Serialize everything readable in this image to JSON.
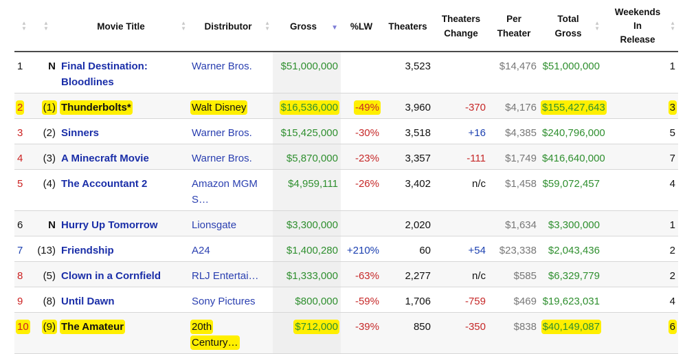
{
  "headers": {
    "title": "Movie Title",
    "distributor": "Distributor",
    "gross": "Gross",
    "lw": "%LW",
    "theaters": "Theaters",
    "theaters_change_1": "Theaters",
    "theaters_change_2": "Change",
    "per_theater_1": "Per",
    "per_theater_2": "Theater",
    "total_gross_1": "Total",
    "total_gross_2": "Gross",
    "weekends_1": "Weekends",
    "weekends_2": "In",
    "weekends_3": "Release"
  },
  "colors": {
    "highlight": "#ffef00",
    "link": "#1a2ea8",
    "gross_green": "#2f8f2f",
    "negative_red": "#c62828",
    "positive_blue": "#1a3fb0"
  },
  "rows": [
    {
      "rank": "1",
      "last": "N",
      "title": "Final Destination: Bloodlines",
      "distributor": "Warner Bros.",
      "gross": "$51,000,000",
      "lw": "",
      "theaters": "3,523",
      "change": "",
      "per_theater": "$14,476",
      "total_gross": "$51,000,000",
      "weekends": "1"
    },
    {
      "rank": "2",
      "last": "(1)",
      "title": "Thunderbolts*",
      "distributor": "Walt Disney",
      "gross": "$16,536,000",
      "lw": "-49%",
      "theaters": "3,960",
      "change": "-370",
      "per_theater": "$4,176",
      "total_gross": "$155,427,643",
      "weekends": "3"
    },
    {
      "rank": "3",
      "last": "(2)",
      "title": "Sinners",
      "distributor": "Warner Bros.",
      "gross": "$15,425,000",
      "lw": "-30%",
      "theaters": "3,518",
      "change": "+16",
      "per_theater": "$4,385",
      "total_gross": "$240,796,000",
      "weekends": "5"
    },
    {
      "rank": "4",
      "last": "(3)",
      "title": "A Minecraft Movie",
      "distributor": "Warner Bros.",
      "gross": "$5,870,000",
      "lw": "-23%",
      "theaters": "3,357",
      "change": "-111",
      "per_theater": "$1,749",
      "total_gross": "$416,640,000",
      "weekends": "7"
    },
    {
      "rank": "5",
      "last": "(4)",
      "title": "The Accountant 2",
      "distributor_1": "Amazon MGM",
      "distributor_2": "S…",
      "gross": "$4,959,111",
      "lw": "-26%",
      "theaters": "3,402",
      "change": "n/c",
      "per_theater": "$1,458",
      "total_gross": "$59,072,457",
      "weekends": "4"
    },
    {
      "rank": "6",
      "last": "N",
      "title": "Hurry Up Tomorrow",
      "distributor": "Lionsgate",
      "gross": "$3,300,000",
      "lw": "",
      "theaters": "2,020",
      "change": "",
      "per_theater": "$1,634",
      "total_gross": "$3,300,000",
      "weekends": "1"
    },
    {
      "rank": "7",
      "last": "(13)",
      "title": "Friendship",
      "distributor": "A24",
      "gross": "$1,400,280",
      "lw": "+210%",
      "theaters": "60",
      "change": "+54",
      "per_theater": "$23,338",
      "total_gross": "$2,043,436",
      "weekends": "2"
    },
    {
      "rank": "8",
      "last": "(5)",
      "title": "Clown in a Cornfield",
      "distributor": "RLJ Entertai…",
      "gross": "$1,333,000",
      "lw": "-63%",
      "theaters": "2,277",
      "change": "n/c",
      "per_theater": "$585",
      "total_gross": "$6,329,779",
      "weekends": "2"
    },
    {
      "rank": "9",
      "last": "(8)",
      "title": "Until Dawn",
      "distributor": "Sony Pictures",
      "gross": "$800,000",
      "lw": "-59%",
      "theaters": "1,706",
      "change": "-759",
      "per_theater": "$469",
      "total_gross": "$19,623,031",
      "weekends": "4"
    },
    {
      "rank": "10",
      "last": "(9)",
      "title": "The Amateur",
      "distributor_1": "20th",
      "distributor_2": "Century…",
      "gross": "$712,000",
      "lw": "-39%",
      "theaters": "850",
      "change": "-350",
      "per_theater": "$838",
      "total_gross": "$40,149,087",
      "weekends": "6"
    }
  ]
}
